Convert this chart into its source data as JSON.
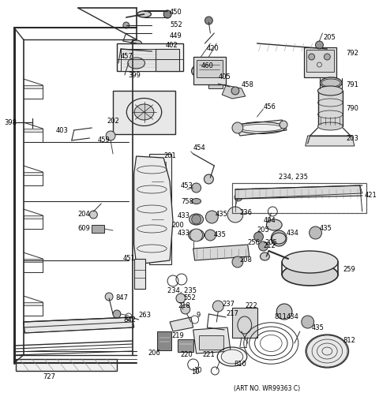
{
  "background": "#ffffff",
  "line_color": "#2a2a2a",
  "fig_width": 4.8,
  "fig_height": 5.12,
  "dpi": 100,
  "art_no": "(ART NO. WR99363 C)"
}
